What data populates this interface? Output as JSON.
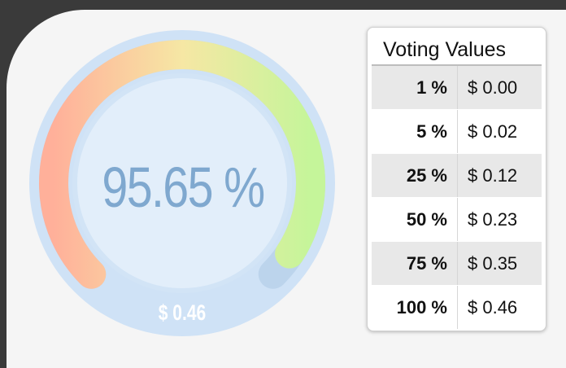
{
  "gauge": {
    "percent_text": "95.65 %",
    "amount_text": "$ 0.46",
    "fill_fraction": 0.9565
  },
  "voting_table": {
    "title": "Voting Values",
    "rows": [
      {
        "percent": "1 %",
        "value": "$ 0.00"
      },
      {
        "percent": "5 %",
        "value": "$ 0.02"
      },
      {
        "percent": "25 %",
        "value": "$ 0.12"
      },
      {
        "percent": "50 %",
        "value": "$ 0.23"
      },
      {
        "percent": "75 %",
        "value": "$ 0.35"
      },
      {
        "percent": "100 %",
        "value": "$ 0.46"
      }
    ]
  },
  "colors": {
    "background": "#3a3a3a",
    "panel": "#f5f5f5",
    "gauge_ring": "#cfe2f6",
    "gauge_inner": "#e2eefa",
    "gauge_start": "#ffb09a",
    "gauge_mid": "#f6e7a4",
    "gauge_end": "#c5f59a",
    "text_blue": "#7fa8cf"
  }
}
